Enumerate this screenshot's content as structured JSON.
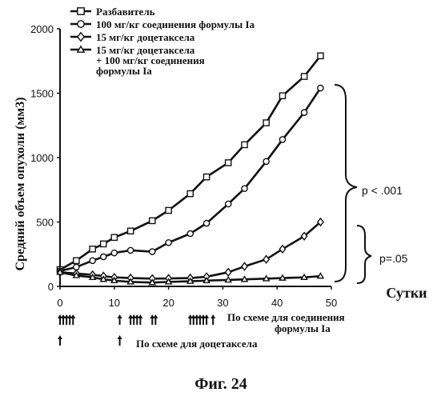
{
  "chart_data": {
    "type": "line",
    "figure_caption": "Фиг. 24",
    "ylabel": "Средний объем опухоли (мм3)",
    "xlabel": "Сутки",
    "xlim": [
      0,
      50
    ],
    "ylim": [
      0,
      2000
    ],
    "x_ticks": [
      0,
      10,
      20,
      30,
      40,
      50
    ],
    "y_ticks": [
      0,
      500,
      1000,
      1500,
      2000
    ],
    "legend_position": "top-left",
    "series": [
      {
        "name": "Разбавитель",
        "marker": "square",
        "x": [
          0,
          3,
          6,
          8,
          10,
          13,
          17,
          20,
          24,
          27,
          31,
          34,
          38,
          41,
          45,
          48
        ],
        "y": [
          130,
          200,
          290,
          330,
          380,
          430,
          510,
          590,
          720,
          850,
          960,
          1100,
          1270,
          1480,
          1630,
          1790
        ]
      },
      {
        "name": "100 мг/кг соединения формулы Ia",
        "marker": "circle",
        "x": [
          0,
          3,
          6,
          8,
          10,
          13,
          17,
          20,
          24,
          27,
          31,
          34,
          38,
          41,
          45,
          48
        ],
        "y": [
          120,
          150,
          200,
          230,
          260,
          280,
          270,
          340,
          410,
          490,
          640,
          760,
          970,
          1140,
          1350,
          1540
        ]
      },
      {
        "name": "15 мг/кг доцетаксела",
        "marker": "diamond",
        "x": [
          0,
          3,
          6,
          8,
          10,
          13,
          17,
          20,
          24,
          27,
          31,
          34,
          38,
          41,
          45,
          48
        ],
        "y": [
          110,
          100,
          90,
          80,
          70,
          65,
          60,
          62,
          65,
          75,
          110,
          155,
          210,
          290,
          390,
          500
        ]
      },
      {
        "name": "15 мг/кг доцетаксела + 100 мг/кг соединения формулы Ia",
        "marker": "triangle",
        "x": [
          0,
          3,
          6,
          8,
          10,
          13,
          17,
          20,
          24,
          27,
          31,
          34,
          38,
          41,
          45,
          48
        ],
        "y": [
          110,
          85,
          70,
          55,
          45,
          35,
          30,
          35,
          40,
          45,
          50,
          55,
          60,
          65,
          70,
          80
        ]
      }
    ],
    "annotations": {
      "p_upper": "p < .001",
      "p_lower": "p=.05"
    },
    "dosing": {
      "compound_label": "По схеме для соединения формулы Ia",
      "docetaxel_label": "По схеме для доцетаксела",
      "compound_days": [
        0,
        0.6,
        1.2,
        1.8,
        2.4,
        11,
        13,
        13.6,
        14.2,
        14.8,
        17,
        17.6,
        24,
        24.6,
        25.2,
        25.8,
        26.4,
        27,
        28.2
      ],
      "docetaxel_days": [
        0,
        11
      ]
    }
  }
}
